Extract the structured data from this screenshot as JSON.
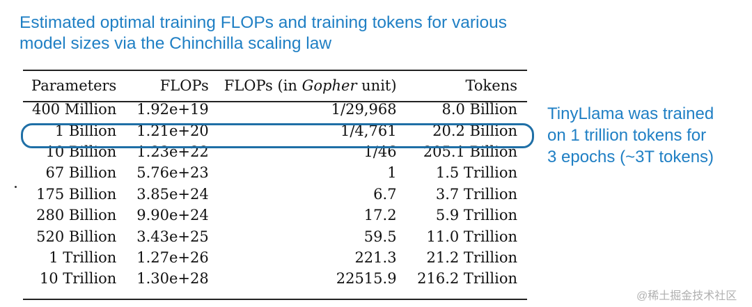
{
  "title": [
    "Estimated optimal training FLOPs and training tokens for various",
    "model sizes via the Chinchilla scaling law"
  ],
  "table": {
    "headers": [
      "Parameters",
      "FLOPs",
      "FLOPs (in ",
      "Gopher",
      " unit)",
      "Tokens"
    ],
    "rows": [
      [
        "400 Million",
        "1.92e+19",
        "1/29,968",
        "8.0 Billion"
      ],
      [
        "1 Billion",
        "1.21e+20",
        "1/4,761",
        "20.2 Billion"
      ],
      [
        "10 Billion",
        "1.23e+22",
        "1/46",
        "205.1 Billion"
      ],
      [
        "67 Billion",
        "5.76e+23",
        "1",
        "1.5 Trillion"
      ],
      [
        "175 Billion",
        "3.85e+24",
        "6.7",
        "3.7 Trillion"
      ],
      [
        "280 Billion",
        "9.90e+24",
        "17.2",
        "5.9 Trillion"
      ],
      [
        "520 Billion",
        "3.43e+25",
        "59.5",
        "11.0 Trillion"
      ],
      [
        "1 Trillion",
        "1.27e+26",
        "221.3",
        "21.2 Trillion"
      ],
      [
        "10 Trillion",
        "1.30e+28",
        "22515.9",
        "216.2 Trillion"
      ]
    ],
    "highlighted_row": 1
  },
  "note": [
    "TinyLlama was trained",
    "on 1 trillion tokens for",
    "3 epochs (~3T tokens)"
  ],
  "watermark": "@稀土掘金技术社区",
  "colors": {
    "accent": "#1f7fc4",
    "highlight": "#1f6fa6"
  }
}
